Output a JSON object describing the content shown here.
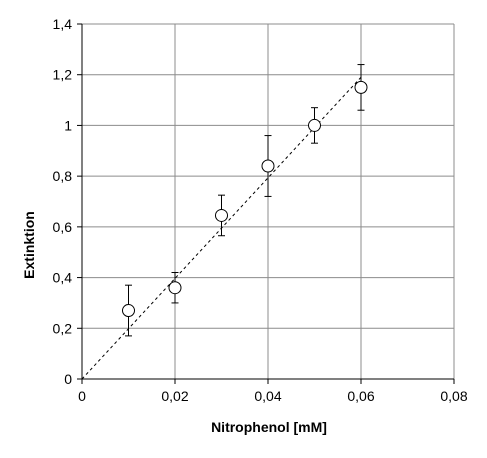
{
  "chart_data": {
    "type": "scatter",
    "title": "",
    "xlabel": "Nitrophenol [mM]",
    "ylabel": "Extinktion",
    "xlim": [
      0,
      0.08
    ],
    "ylim": [
      0,
      1.4
    ],
    "x_ticks": [
      "0",
      "0,02",
      "0,04",
      "0,06",
      "0,08"
    ],
    "y_ticks": [
      "0",
      "0,2",
      "0,4",
      "0,6",
      "0,8",
      "1",
      "1,2",
      "1,4"
    ],
    "x_tick_values": [
      0,
      0.02,
      0.04,
      0.06,
      0.08
    ],
    "y_tick_values": [
      0,
      0.2,
      0.4,
      0.6,
      0.8,
      1.0,
      1.2,
      1.4
    ],
    "grid": true,
    "legend": "none",
    "series": [
      {
        "x": [
          0.01,
          0.02,
          0.03,
          0.04,
          0.05,
          0.06
        ],
        "y": [
          0.27,
          0.36,
          0.645,
          0.84,
          1.0,
          1.15
        ],
        "error": [
          0.1,
          0.06,
          0.08,
          0.12,
          0.07,
          0.09
        ],
        "marker": "open-circle"
      }
    ],
    "trendline": {
      "style": "dashed",
      "x": [
        0,
        0.06
      ],
      "y": [
        0,
        1.19
      ]
    }
  }
}
